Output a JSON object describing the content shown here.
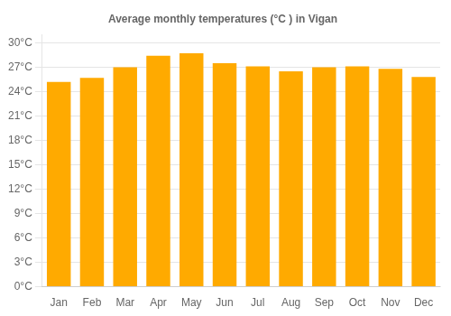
{
  "chart_data": {
    "type": "bar",
    "title": "Average monthly temperatures (°C ) in Vigan",
    "categories": [
      "Jan",
      "Feb",
      "Mar",
      "Apr",
      "May",
      "Jun",
      "Jul",
      "Aug",
      "Sep",
      "Oct",
      "Nov",
      "Dec"
    ],
    "values": [
      25.2,
      25.7,
      27.0,
      28.4,
      28.7,
      27.5,
      27.1,
      26.5,
      27.0,
      27.1,
      26.8,
      25.8
    ],
    "color": "#FFAA00",
    "ylim": [
      0,
      31
    ],
    "yticks": [
      {
        "value": 0,
        "label": "0°C"
      },
      {
        "value": 3,
        "label": "3°C"
      },
      {
        "value": 6,
        "label": "6°C"
      },
      {
        "value": 9,
        "label": "9°C"
      },
      {
        "value": 12,
        "label": "12°C"
      },
      {
        "value": 15,
        "label": "15°C"
      },
      {
        "value": 18,
        "label": "18°C"
      },
      {
        "value": 21,
        "label": "21°C"
      },
      {
        "value": 24,
        "label": "24°C"
      },
      {
        "value": 27,
        "label": "27°C"
      },
      {
        "value": 30,
        "label": "30°C"
      }
    ],
    "grid": true
  }
}
